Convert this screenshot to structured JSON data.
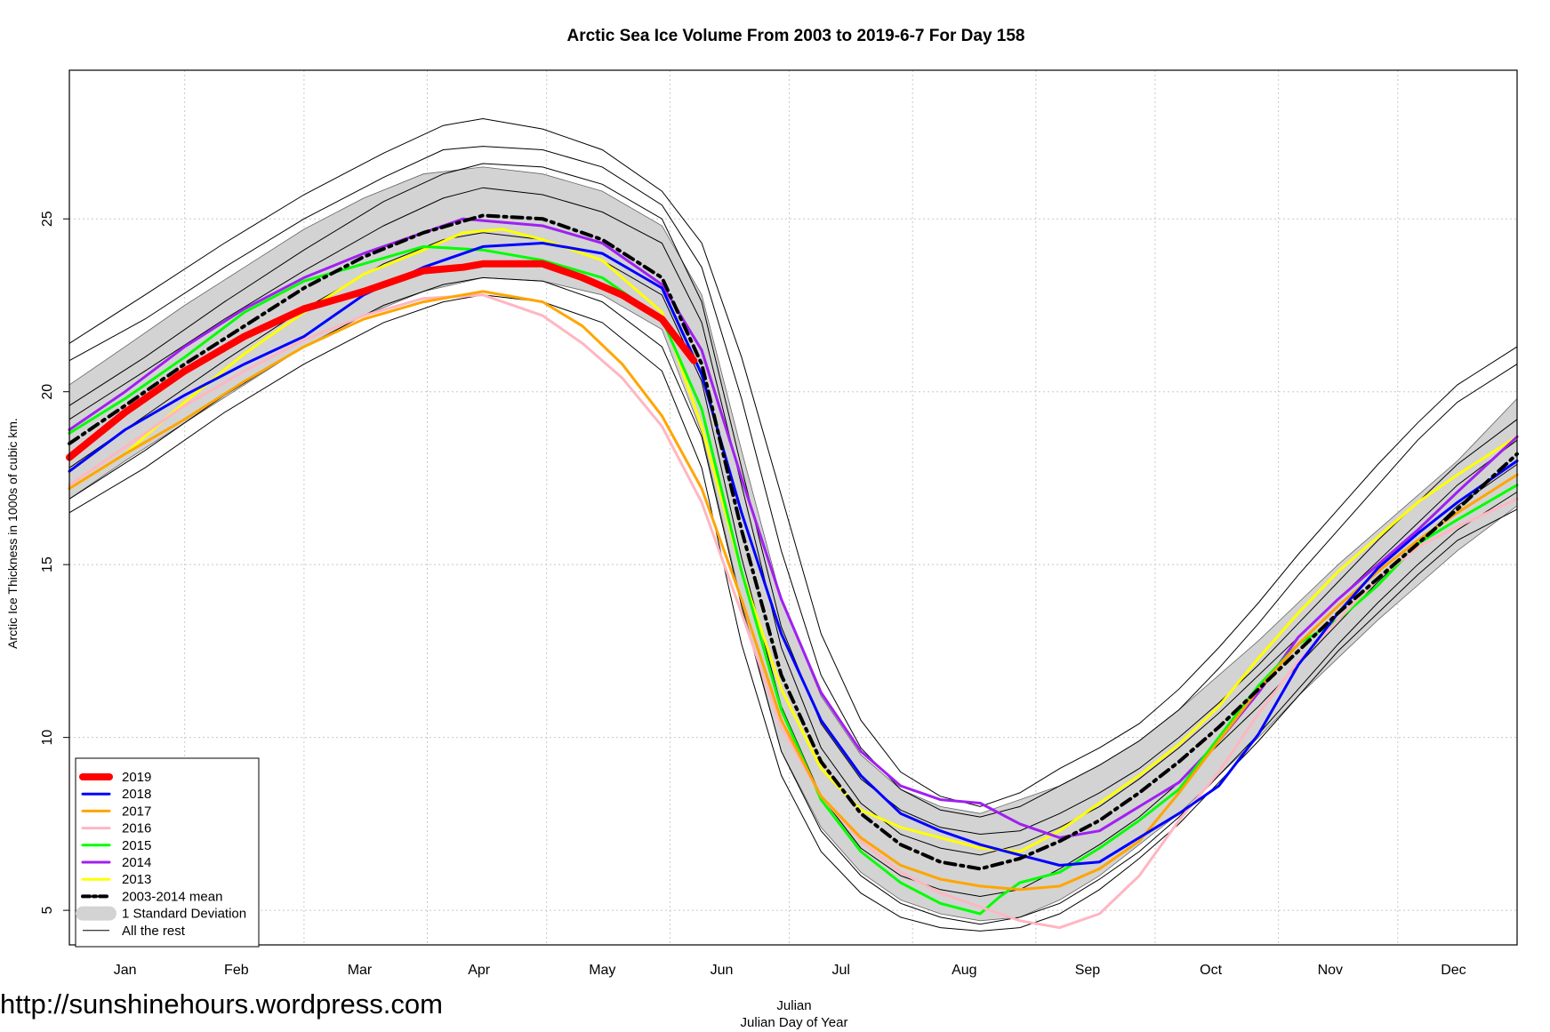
{
  "watermark": "http://sunshinehours.wordpress.com",
  "chart_data": {
    "type": "line",
    "title": "Arctic Sea Ice Volume From 2003 to 2019-6-7  For Day 158",
    "xlabel": "Julian",
    "xlabel2": "Julian Day of Year",
    "ylabel": "Arctic Ice Thickness in 1000s of cubic km.",
    "xlim": [
      1,
      365
    ],
    "ylim": [
      4,
      29.3
    ],
    "yticks": [
      5,
      10,
      15,
      20,
      25
    ],
    "month_labels": [
      "Jan",
      "Feb",
      "Mar",
      "Apr",
      "May",
      "Jun",
      "Jul",
      "Aug",
      "Sep",
      "Oct",
      "Nov",
      "Dec"
    ],
    "month_tick_days": [
      15,
      43,
      74,
      104,
      135,
      165,
      195,
      226,
      257,
      288,
      318,
      349
    ],
    "grid": true,
    "legend_position": "bottom-left",
    "colors": {
      "c2019": "#ff0000",
      "c2018": "#0000ff",
      "c2017": "#ffa500",
      "c2016": "#ffb6c1",
      "c2015": "#00ff00",
      "c2014": "#a020f0",
      "c2013": "#ffff00",
      "mean": "#000000",
      "sd_band": "#d3d3d3",
      "rest": "#000000"
    },
    "series": [
      {
        "name": "2019",
        "key": "c2019",
        "width": 8,
        "x": [
          1,
          15,
          30,
          45,
          60,
          75,
          90,
          100,
          105,
          120,
          130,
          140,
          150,
          158
        ],
        "y": [
          18.1,
          19.4,
          20.6,
          21.6,
          22.4,
          22.9,
          23.5,
          23.6,
          23.7,
          23.7,
          23.3,
          22.8,
          22.1,
          20.9
        ]
      },
      {
        "name": "2018",
        "key": "c2018",
        "width": 3,
        "x": [
          1,
          15,
          30,
          45,
          60,
          75,
          90,
          105,
          120,
          135,
          150,
          160,
          170,
          180,
          190,
          200,
          210,
          220,
          230,
          240,
          250,
          260,
          270,
          280,
          290,
          300,
          310,
          320,
          330,
          340,
          350,
          365
        ],
        "y": [
          17.7,
          18.9,
          19.9,
          20.8,
          21.6,
          22.8,
          23.6,
          24.2,
          24.3,
          24.0,
          23.0,
          20.5,
          16.5,
          13.0,
          10.5,
          8.9,
          7.8,
          7.3,
          6.9,
          6.6,
          6.3,
          6.4,
          7.1,
          7.8,
          8.6,
          10.1,
          12.1,
          13.6,
          14.9,
          15.9,
          16.8,
          18.0
        ]
      },
      {
        "name": "2017",
        "key": "c2017",
        "width": 3,
        "x": [
          1,
          15,
          30,
          45,
          60,
          75,
          90,
          105,
          120,
          130,
          140,
          150,
          160,
          170,
          180,
          190,
          200,
          210,
          220,
          230,
          240,
          250,
          260,
          270,
          280,
          290,
          300,
          310,
          320,
          330,
          340,
          350,
          365
        ],
        "y": [
          17.2,
          18.2,
          19.2,
          20.3,
          21.3,
          22.1,
          22.6,
          22.9,
          22.6,
          21.9,
          20.8,
          19.3,
          17.2,
          14.0,
          10.5,
          8.3,
          7.1,
          6.3,
          5.9,
          5.7,
          5.6,
          5.7,
          6.2,
          7.0,
          8.4,
          9.9,
          11.4,
          12.7,
          13.8,
          14.8,
          15.7,
          16.5,
          17.6
        ]
      },
      {
        "name": "2016",
        "key": "c2016",
        "width": 3,
        "x": [
          1,
          15,
          30,
          45,
          60,
          75,
          90,
          105,
          120,
          130,
          140,
          150,
          160,
          170,
          180,
          190,
          200,
          210,
          220,
          230,
          240,
          250,
          260,
          270,
          280,
          290,
          300,
          310,
          320,
          330,
          340,
          350,
          365
        ],
        "y": [
          17.3,
          18.4,
          19.6,
          20.6,
          21.5,
          22.2,
          22.7,
          22.8,
          22.2,
          21.4,
          20.4,
          19.0,
          16.8,
          13.6,
          10.3,
          8.3,
          7.0,
          6.1,
          5.5,
          5.1,
          4.7,
          4.5,
          4.9,
          6.0,
          7.6,
          9.0,
          10.7,
          12.2,
          13.4,
          14.6,
          15.5,
          16.1,
          16.9
        ]
      },
      {
        "name": "2015",
        "key": "c2015",
        "width": 3,
        "x": [
          1,
          15,
          30,
          45,
          60,
          75,
          90,
          105,
          120,
          135,
          150,
          160,
          170,
          180,
          190,
          200,
          210,
          220,
          230,
          235,
          240,
          250,
          260,
          270,
          280,
          290,
          300,
          310,
          320,
          330,
          340,
          350,
          365
        ],
        "y": [
          18.8,
          19.8,
          21.0,
          22.3,
          23.2,
          23.7,
          24.2,
          24.1,
          23.8,
          23.3,
          22.1,
          19.5,
          14.8,
          10.8,
          8.2,
          6.7,
          5.8,
          5.2,
          4.9,
          5.4,
          5.8,
          6.1,
          6.8,
          7.6,
          8.5,
          10.0,
          11.5,
          12.7,
          13.4,
          14.4,
          15.6,
          16.3,
          17.3
        ]
      },
      {
        "name": "2014",
        "key": "c2014",
        "width": 3,
        "x": [
          1,
          15,
          30,
          45,
          60,
          75,
          90,
          100,
          110,
          120,
          135,
          150,
          160,
          170,
          180,
          190,
          200,
          210,
          220,
          230,
          240,
          250,
          260,
          270,
          280,
          290,
          300,
          310,
          320,
          330,
          340,
          350,
          365
        ],
        "y": [
          18.9,
          20.0,
          21.3,
          22.4,
          23.3,
          24.0,
          24.6,
          25.0,
          24.9,
          24.8,
          24.3,
          23.1,
          21.2,
          17.5,
          14.0,
          11.3,
          9.6,
          8.6,
          8.2,
          8.1,
          7.5,
          7.1,
          7.3,
          8.0,
          8.7,
          9.9,
          11.3,
          12.9,
          14.0,
          15.0,
          16.0,
          17.1,
          18.7
        ]
      },
      {
        "name": "2013",
        "key": "c2013",
        "width": 3,
        "x": [
          1,
          15,
          30,
          45,
          60,
          75,
          90,
          100,
          110,
          120,
          135,
          150,
          160,
          170,
          180,
          190,
          200,
          210,
          220,
          230,
          240,
          250,
          260,
          270,
          280,
          290,
          300,
          310,
          320,
          330,
          340,
          350,
          365
        ],
        "y": [
          17.2,
          18.2,
          19.7,
          21.1,
          22.3,
          23.4,
          24.1,
          24.6,
          24.7,
          24.4,
          23.8,
          22.3,
          19.0,
          14.8,
          11.4,
          9.1,
          7.9,
          7.4,
          7.1,
          6.8,
          6.7,
          7.3,
          8.1,
          8.9,
          9.8,
          10.9,
          12.3,
          13.6,
          14.8,
          15.8,
          16.8,
          17.6,
          18.7
        ]
      },
      {
        "name": "2003-2014 mean",
        "key": "mean",
        "width": 4,
        "dash": "12,6,3,6",
        "x": [
          1,
          15,
          30,
          45,
          60,
          75,
          90,
          105,
          120,
          135,
          150,
          160,
          170,
          180,
          190,
          200,
          210,
          220,
          230,
          240,
          250,
          260,
          270,
          280,
          290,
          300,
          310,
          320,
          330,
          340,
          350,
          365
        ],
        "y": [
          18.5,
          19.6,
          20.8,
          21.9,
          23.0,
          23.9,
          24.6,
          25.1,
          25.0,
          24.4,
          23.3,
          20.8,
          16.0,
          11.8,
          9.3,
          7.8,
          6.9,
          6.4,
          6.2,
          6.5,
          7.0,
          7.6,
          8.4,
          9.3,
          10.3,
          11.4,
          12.5,
          13.6,
          14.6,
          15.6,
          16.6,
          18.2
        ]
      }
    ],
    "sd_band": {
      "name": "1 Standard Deviation",
      "x": [
        1,
        15,
        30,
        45,
        60,
        75,
        90,
        105,
        120,
        135,
        150,
        160,
        170,
        180,
        190,
        200,
        210,
        220,
        230,
        240,
        250,
        260,
        270,
        280,
        290,
        300,
        310,
        320,
        330,
        340,
        350,
        365
      ],
      "upper": [
        20.2,
        21.3,
        22.5,
        23.6,
        24.7,
        25.6,
        26.3,
        26.5,
        26.3,
        25.8,
        24.8,
        22.8,
        18.3,
        14.0,
        11.2,
        9.5,
        8.5,
        8.0,
        7.8,
        8.2,
        8.6,
        9.2,
        9.9,
        10.8,
        11.8,
        12.8,
        13.9,
        15.0,
        16.0,
        17.0,
        18.0,
        19.8
      ],
      "lower": [
        16.9,
        18.0,
        19.1,
        20.2,
        21.3,
        22.2,
        22.9,
        23.3,
        23.2,
        22.8,
        21.8,
        18.8,
        13.9,
        9.6,
        7.4,
        6.1,
        5.3,
        4.9,
        4.7,
        4.8,
        5.3,
        6.0,
        6.9,
        7.8,
        8.9,
        10.0,
        11.2,
        12.3,
        13.4,
        14.4,
        15.4,
        16.7
      ]
    },
    "rest_label": "All the rest",
    "rest": [
      {
        "x": [
          1,
          20,
          40,
          60,
          80,
          95,
          105,
          120,
          135,
          150,
          160,
          170,
          180,
          190,
          200,
          210,
          220,
          230,
          240,
          250,
          260,
          270,
          280,
          290,
          300,
          310,
          320,
          330,
          340,
          350,
          365
        ],
        "y": [
          21.4,
          22.8,
          24.3,
          25.7,
          26.9,
          27.7,
          27.9,
          27.6,
          27.0,
          25.8,
          24.3,
          21.0,
          17.0,
          13.0,
          10.5,
          9.0,
          8.3,
          8.0,
          8.4,
          9.1,
          9.7,
          10.4,
          11.4,
          12.6,
          13.9,
          15.3,
          16.6,
          17.9,
          19.1,
          20.2,
          21.3
        ]
      },
      {
        "x": [
          1,
          20,
          40,
          60,
          80,
          95,
          105,
          120,
          135,
          150,
          160,
          170,
          180,
          190,
          200,
          210,
          220,
          230,
          240,
          250,
          260,
          270,
          280,
          290,
          300,
          310,
          320,
          330,
          340,
          350,
          365
        ],
        "y": [
          20.9,
          22.1,
          23.6,
          25.0,
          26.2,
          27.0,
          27.1,
          27.0,
          26.5,
          25.4,
          23.6,
          19.8,
          15.4,
          11.8,
          9.7,
          8.5,
          7.9,
          7.7,
          8.0,
          8.6,
          9.2,
          9.9,
          10.8,
          12.0,
          13.3,
          14.7,
          16.0,
          17.3,
          18.6,
          19.7,
          20.8
        ]
      },
      {
        "x": [
          1,
          20,
          40,
          60,
          80,
          95,
          105,
          120,
          135,
          150,
          160,
          170,
          180,
          190,
          200,
          210,
          220,
          230,
          240,
          250,
          260,
          270,
          280,
          290,
          300,
          310,
          320,
          330,
          340,
          350,
          365
        ],
        "y": [
          19.6,
          21.0,
          22.6,
          24.1,
          25.5,
          26.3,
          26.6,
          26.5,
          26.0,
          25.0,
          22.6,
          17.8,
          13.2,
          10.4,
          8.8,
          7.9,
          7.4,
          7.2,
          7.3,
          7.8,
          8.4,
          9.1,
          10.0,
          11.0,
          12.1,
          13.3,
          14.5,
          15.7,
          16.8,
          17.9,
          19.2
        ]
      },
      {
        "x": [
          1,
          20,
          40,
          60,
          80,
          95,
          105,
          120,
          135,
          150,
          160,
          170,
          180,
          190,
          200,
          210,
          220,
          230,
          240,
          250,
          260,
          270,
          280,
          290,
          300,
          310,
          320,
          330,
          340,
          350,
          365
        ],
        "y": [
          19.2,
          20.6,
          22.1,
          23.5,
          24.8,
          25.6,
          25.9,
          25.7,
          25.2,
          24.3,
          22.0,
          17.3,
          12.6,
          9.7,
          8.1,
          7.2,
          6.8,
          6.6,
          6.9,
          7.4,
          8.0,
          8.8,
          9.7,
          10.7,
          11.8,
          12.9,
          14.0,
          15.1,
          16.2,
          17.3,
          18.6
        ]
      },
      {
        "x": [
          1,
          20,
          40,
          60,
          80,
          95,
          105,
          120,
          135,
          150,
          160,
          170,
          180,
          190,
          200,
          210,
          220,
          230,
          240,
          250,
          260,
          270,
          280,
          290,
          300,
          310,
          320,
          330,
          340,
          350,
          365
        ],
        "y": [
          17.8,
          19.3,
          20.9,
          22.4,
          23.7,
          24.4,
          24.6,
          24.4,
          23.8,
          22.8,
          20.3,
          15.2,
          10.9,
          8.3,
          6.8,
          6.0,
          5.6,
          5.4,
          5.6,
          6.2,
          6.9,
          7.7,
          8.7,
          9.8,
          10.9,
          12.1,
          13.3,
          14.5,
          15.6,
          16.7,
          17.9
        ]
      },
      {
        "x": [
          1,
          20,
          40,
          60,
          80,
          95,
          105,
          120,
          135,
          150,
          160,
          170,
          180,
          190,
          200,
          210,
          220,
          230,
          240,
          250,
          260,
          270,
          280,
          290,
          300,
          310,
          320,
          330,
          340,
          350,
          365
        ],
        "y": [
          16.9,
          18.3,
          19.9,
          21.3,
          22.5,
          23.1,
          23.3,
          23.2,
          22.6,
          21.3,
          18.7,
          13.8,
          9.6,
          7.3,
          6.0,
          5.2,
          4.8,
          4.6,
          4.8,
          5.2,
          5.9,
          6.7,
          7.7,
          8.9,
          10.1,
          11.4,
          12.7,
          13.9,
          15.0,
          16.0,
          17.1
        ]
      },
      {
        "x": [
          1,
          20,
          40,
          60,
          80,
          95,
          105,
          120,
          135,
          150,
          160,
          170,
          180,
          190,
          200,
          210,
          220,
          230,
          240,
          250,
          260,
          270,
          280,
          290,
          300,
          310,
          320,
          330,
          340,
          350,
          365
        ],
        "y": [
          16.5,
          17.8,
          19.4,
          20.8,
          22.0,
          22.6,
          22.8,
          22.6,
          22.0,
          20.6,
          17.8,
          12.7,
          8.9,
          6.7,
          5.5,
          4.8,
          4.5,
          4.4,
          4.5,
          4.9,
          5.6,
          6.5,
          7.5,
          8.7,
          9.9,
          11.2,
          12.5,
          13.6,
          14.7,
          15.7,
          16.6
        ]
      }
    ]
  }
}
